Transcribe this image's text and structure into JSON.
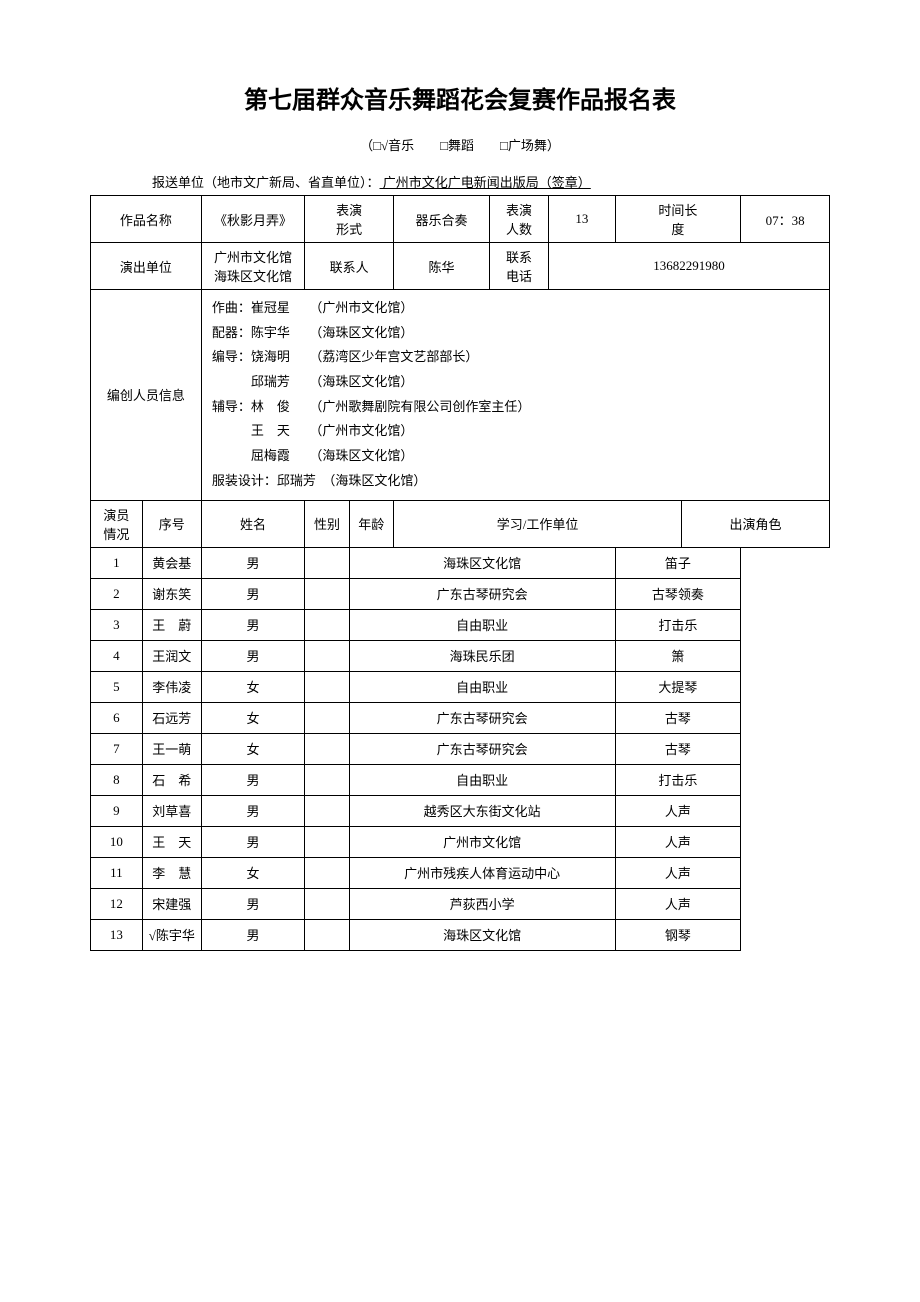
{
  "title": "第七届群众音乐舞蹈花会复赛作品报名表",
  "subtitle": "（□√音乐　　□舞蹈　　□广场舞）",
  "reporter_prefix": "报送单位（地市文广新局、省直单位）：",
  "reporter_unit": "  广州市文化广电新闻出版局（签章）",
  "labels": {
    "work_name": "作品名称",
    "perf_form": "表演\n形式",
    "perf_count": "表演\n人数",
    "duration": "时间长\n度",
    "perf_unit": "演出单位",
    "contact_person": "联系人",
    "contact_phone": "联系\n电话",
    "staff_info": "编创人员信息",
    "actors": "演员\n情况",
    "seq": "序号",
    "name": "姓名",
    "gender": "性别",
    "age": "年龄",
    "workplace": "学习/工作单位",
    "role": "出演角色"
  },
  "work": {
    "name": "《秋影月弄》",
    "form": "器乐合奏",
    "count": "13",
    "duration": "07：38",
    "unit": "广州市文化馆\n海珠区文化馆",
    "contact_person": "陈华",
    "contact_phone": "13682291980"
  },
  "staff_lines": [
    "作曲：崔冠星　　（广州市文化馆）",
    "配器：陈宇华　　（海珠区文化馆）",
    "编导：饶海明　　（荔湾区少年宫文艺部部长）",
    "　　　邱瑞芳　　（海珠区文化馆）",
    "辅导：林　俊　　（广州歌舞剧院有限公司创作室主任）",
    "　　　王　天　　（广州市文化馆）",
    "　　　屈梅霞　　（海珠区文化馆）",
    "服装设计：邱瑞芳　（海珠区文化馆）"
  ],
  "actors": [
    {
      "seq": "1",
      "name": "黄会基",
      "gender": "男",
      "age": "",
      "workplace": "海珠区文化馆",
      "role": "笛子"
    },
    {
      "seq": "2",
      "name": "谢东笑",
      "gender": "男",
      "age": "",
      "workplace": "广东古琴研究会",
      "role": "古琴领奏"
    },
    {
      "seq": "3",
      "name": "王　蔚",
      "gender": "男",
      "age": "",
      "workplace": "自由职业",
      "role": "打击乐"
    },
    {
      "seq": "4",
      "name": "王润文",
      "gender": "男",
      "age": "",
      "workplace": "海珠民乐团",
      "role": "箫"
    },
    {
      "seq": "5",
      "name": "李伟凌",
      "gender": "女",
      "age": "",
      "workplace": "自由职业",
      "role": "大提琴"
    },
    {
      "seq": "6",
      "name": "石远芳",
      "gender": "女",
      "age": "",
      "workplace": "广东古琴研究会",
      "role": "古琴"
    },
    {
      "seq": "7",
      "name": "王一萌",
      "gender": "女",
      "age": "",
      "workplace": "广东古琴研究会",
      "role": "古琴"
    },
    {
      "seq": "8",
      "name": "石　希",
      "gender": "男",
      "age": "",
      "workplace": "自由职业",
      "role": "打击乐"
    },
    {
      "seq": "9",
      "name": "刘草喜",
      "gender": "男",
      "age": "",
      "workplace": "越秀区大东街文化站",
      "role": "人声"
    },
    {
      "seq": "10",
      "name": "王　天",
      "gender": "男",
      "age": "",
      "workplace": "广州市文化馆",
      "role": "人声"
    },
    {
      "seq": "11",
      "name": "李　慧",
      "gender": "女",
      "age": "",
      "workplace": "广州市残疾人体育运动中心",
      "role": "人声"
    },
    {
      "seq": "12",
      "name": "宋建强",
      "gender": "男",
      "age": "",
      "workplace": "芦荻西小学",
      "role": "人声"
    },
    {
      "seq": "13",
      "name": "√陈宇华",
      "gender": "男",
      "age": "",
      "workplace": "海珠区文化馆",
      "role": "钢琴"
    }
  ]
}
